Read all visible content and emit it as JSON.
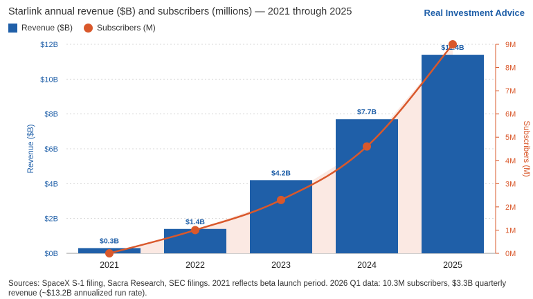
{
  "header": {
    "title": "Starlink annual revenue ($B) and subscribers (millions) — 2021 through 2025",
    "brand": "Real Investment Advice"
  },
  "legend": {
    "revenue": "Revenue ($B)",
    "subscribers": "Subscribers (M)"
  },
  "footer": {
    "source": "Sources: SpaceX S-1 filing, Sacra Research, SEC filings. 2021 reflects beta launch period. 2026 Q1 data: 10.3M subscribers, $3.3B quarterly revenue (~$13.2B annualized run rate)."
  },
  "colors": {
    "revenue": "#1f5fa8",
    "subscribers": "#d9582b",
    "area_fill": "#fbe9e3"
  },
  "chart_data": {
    "type": "bar",
    "categories": [
      "2021",
      "2022",
      "2023",
      "2024",
      "2025"
    ],
    "series": [
      {
        "name": "Revenue ($B)",
        "type": "bar",
        "axis": "left",
        "values": [
          0.3,
          1.4,
          4.2,
          7.7,
          11.4
        ],
        "labels": [
          "$0.3B",
          "$1.4B",
          "$4.2B",
          "$7.7B",
          "$11.4B"
        ]
      },
      {
        "name": "Subscribers (M)",
        "type": "line",
        "axis": "right",
        "values": [
          0.0,
          1.0,
          2.3,
          4.6,
          9.0
        ]
      }
    ],
    "ylabel": "Revenue ($B)",
    "ylabel_right": "Subscribers (M)",
    "ylim": [
      0,
      12
    ],
    "ylim_right": [
      0,
      9
    ],
    "yticks": [
      "$0B",
      "$2B",
      "$4B",
      "$6B",
      "$8B",
      "$10B",
      "$12B"
    ],
    "yticks_right": [
      "0M",
      "1M",
      "2M",
      "3M",
      "4M",
      "5M",
      "6M",
      "7M",
      "8M",
      "9M"
    ],
    "grid": true,
    "legend_position": "top-left"
  }
}
